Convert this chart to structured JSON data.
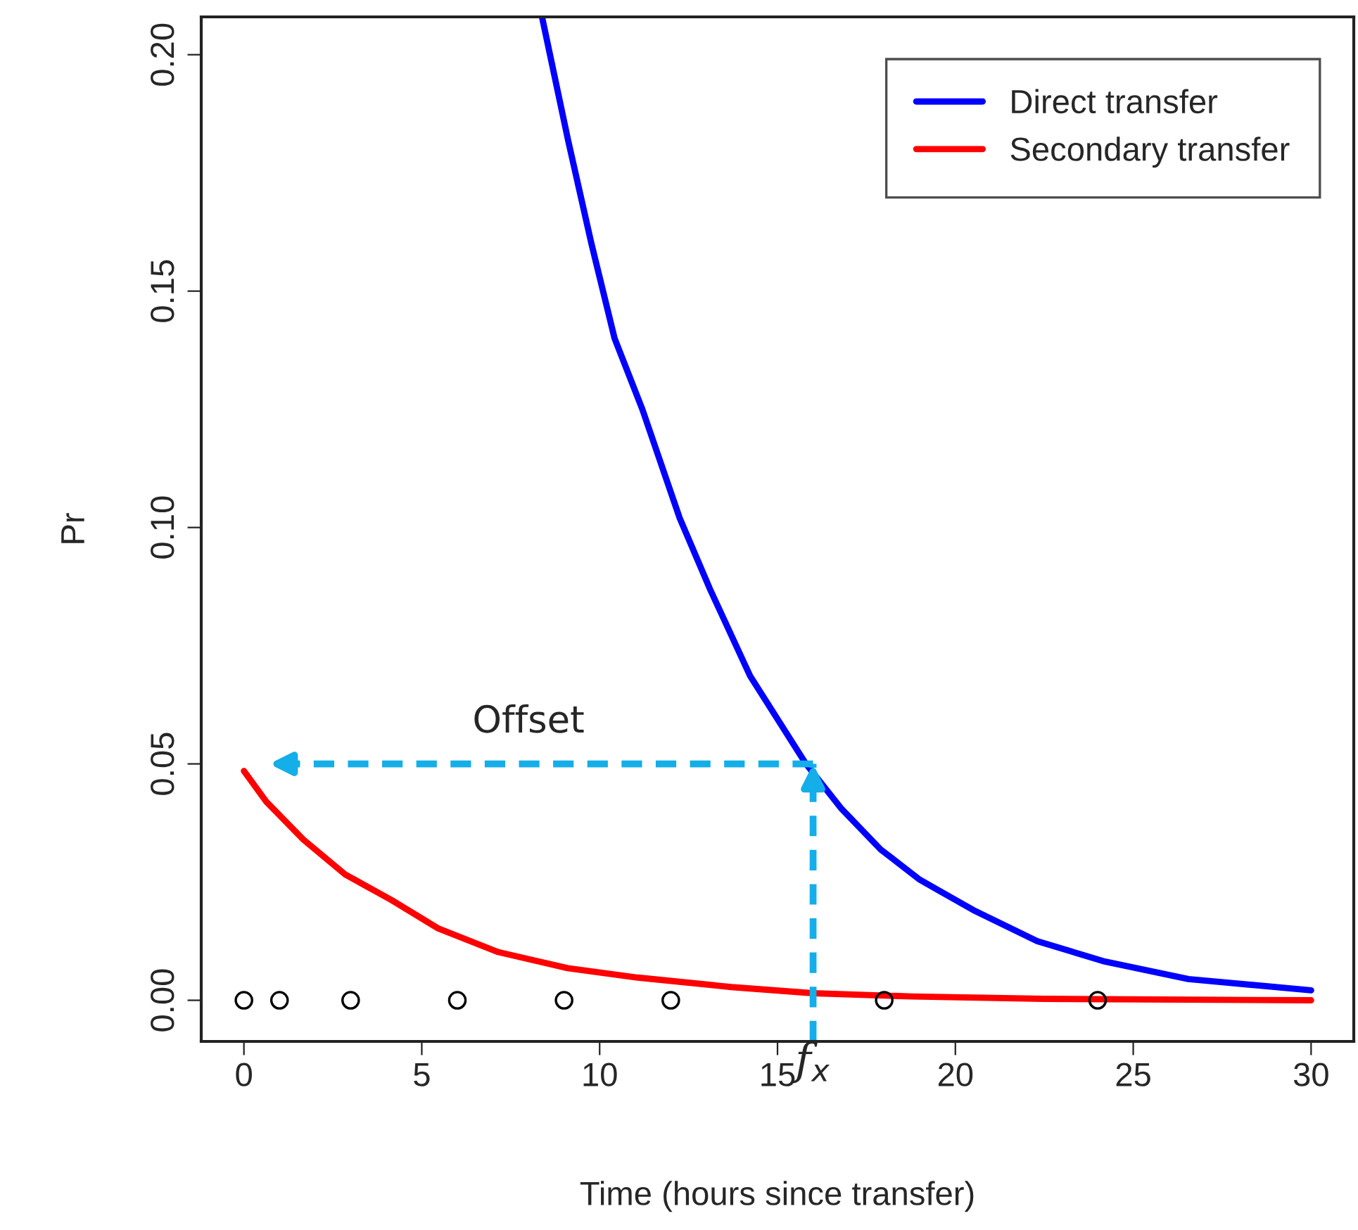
{
  "chart_data": {
    "type": "line",
    "xlabel": "Time (hours since transfer)",
    "ylabel": "Pr",
    "series": [
      {
        "name": "Direct transfer",
        "color": "#0000ff",
        "x": [
          8.38,
          9.11,
          9.77,
          10.42,
          11.2,
          12.25,
          13.1,
          14.23,
          15.8,
          16.8,
          17.9,
          19.0,
          20.5,
          22.3,
          24.15,
          26.55,
          30.0
        ],
        "values": [
          0.208,
          0.182,
          0.16,
          0.14,
          0.125,
          0.102,
          0.087,
          0.0686,
          0.05,
          0.0405,
          0.0319,
          0.0255,
          0.0191,
          0.0125,
          0.0083,
          0.0045,
          0.0021
        ]
      },
      {
        "name": "Secondary transfer",
        "color": "#ff0000",
        "x": [
          0,
          0.63,
          1.67,
          2.85,
          4.15,
          5.46,
          7.15,
          9.1,
          11.07,
          13.7,
          16.0,
          18.8,
          22.5,
          30.0
        ],
        "values": [
          0.0485,
          0.042,
          0.034,
          0.0266,
          0.0212,
          0.0152,
          0.0102,
          0.0068,
          0.0048,
          0.0028,
          0.0015,
          0.0008,
          0.0003,
          0.0
        ]
      },
      {
        "type": "scatter",
        "color": "#000000",
        "marker": "circle",
        "x": [
          0,
          1,
          3,
          6,
          9,
          12,
          18,
          24
        ],
        "values": [
          0,
          0,
          0,
          0,
          0,
          0,
          0,
          0
        ]
      }
    ],
    "xlim": [
      -1.2,
      31.2
    ],
    "ylim": [
      -0.0087,
      0.208
    ],
    "xticks": [
      0,
      5,
      10,
      15,
      20,
      25,
      30
    ],
    "yticks": [
      {
        "value": 0,
        "label": "0.00"
      },
      {
        "value": 0.05,
        "label": "0.05"
      },
      {
        "value": 0.1,
        "label": "0.10"
      },
      {
        "value": 0.15,
        "label": "0.15"
      },
      {
        "value": 0.2,
        "label": "0.20"
      }
    ],
    "ref_lines": [
      {
        "axis": "y",
        "value": 0.05,
        "label": "Offset",
        "color": "#14aee8",
        "line_style": "dashed"
      },
      {
        "axis": "x",
        "value": 16,
        "label": "f$_{x}$",
        "color": "#14aee8",
        "line_style": "dashed"
      }
    ],
    "legend": "top right",
    "grid": false,
    "marker": "none",
    "line_style": "solid"
  }
}
